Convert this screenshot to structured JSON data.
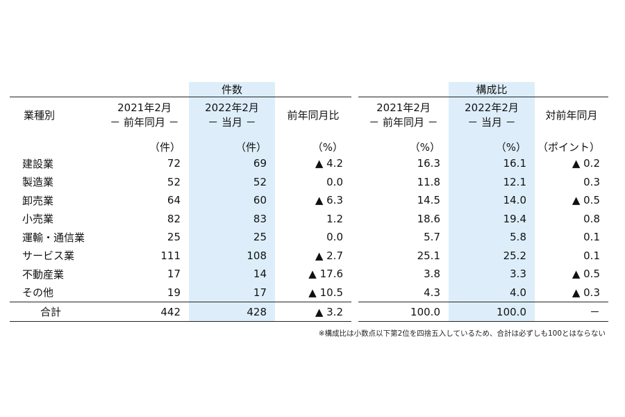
{
  "left_table": {
    "group_label": "件数",
    "headers": {
      "category": "業種別",
      "col1": [
        "2021年2月",
        "－ 前年同月 －"
      ],
      "col2": [
        "2022年2月",
        "－ 当月 －"
      ],
      "col3": "前年同月比"
    },
    "units": [
      "（件）",
      "（件）",
      "（%）"
    ],
    "rows": [
      {
        "name": "建設業",
        "prev": "72",
        "curr": "69",
        "yoy": "▲ 4.2"
      },
      {
        "name": "製造業",
        "prev": "52",
        "curr": "52",
        "yoy": "0.0"
      },
      {
        "name": "卸売業",
        "prev": "64",
        "curr": "60",
        "yoy": "▲ 6.3"
      },
      {
        "name": "小売業",
        "prev": "82",
        "curr": "83",
        "yoy": "1.2"
      },
      {
        "name": "運輸・通信業",
        "prev": "25",
        "curr": "25",
        "yoy": "0.0"
      },
      {
        "name": "サービス業",
        "prev": "111",
        "curr": "108",
        "yoy": "▲ 2.7"
      },
      {
        "name": "不動産業",
        "prev": "17",
        "curr": "14",
        "yoy": "▲ 17.6"
      },
      {
        "name": "その他",
        "prev": "19",
        "curr": "17",
        "yoy": "▲ 10.5"
      }
    ],
    "total": {
      "name": "合計",
      "prev": "442",
      "curr": "428",
      "yoy": "▲ 3.2"
    }
  },
  "right_table": {
    "group_label": "構成比",
    "headers": {
      "col1": [
        "2021年2月",
        "－ 前年同月 －"
      ],
      "col2": [
        "2022年2月",
        "－ 当月 －"
      ],
      "col3": "対前年同月"
    },
    "units": [
      "（%）",
      "（%）",
      "（ポイント）"
    ],
    "rows": [
      {
        "prev": "16.3",
        "curr": "16.1",
        "diff": "▲ 0.2"
      },
      {
        "prev": "11.8",
        "curr": "12.1",
        "diff": "0.3"
      },
      {
        "prev": "14.5",
        "curr": "14.0",
        "diff": "▲ 0.5"
      },
      {
        "prev": "18.6",
        "curr": "19.4",
        "diff": "0.8"
      },
      {
        "prev": "5.7",
        "curr": "5.8",
        "diff": "0.1"
      },
      {
        "prev": "25.1",
        "curr": "25.2",
        "diff": "0.1"
      },
      {
        "prev": "3.8",
        "curr": "3.3",
        "diff": "▲ 0.5"
      },
      {
        "prev": "4.3",
        "curr": "4.0",
        "diff": "▲ 0.3"
      }
    ],
    "total": {
      "prev": "100.0",
      "curr": "100.0",
      "diff": "－"
    }
  },
  "note": "※構成比は小数点以下第2位を四捨五入しているため、合計は必ずしも100とはならない",
  "colors": {
    "highlight": "#ddeefa",
    "rule": "#222222"
  }
}
